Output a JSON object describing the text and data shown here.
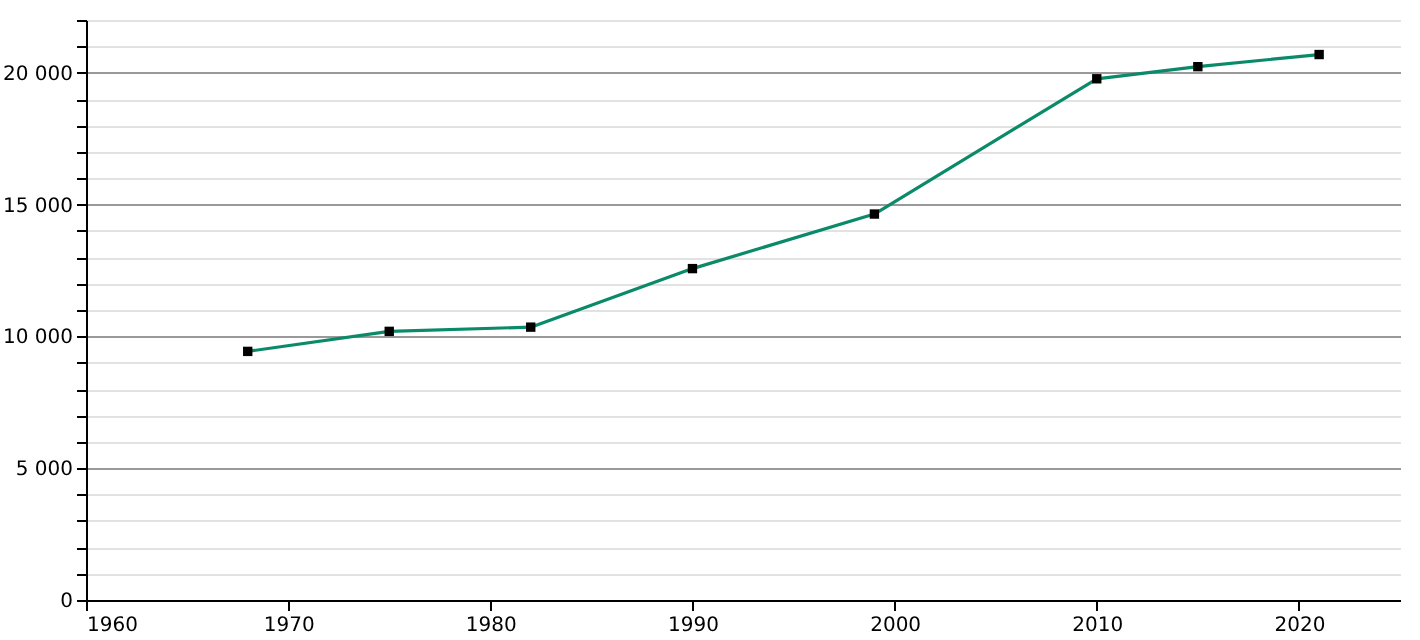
{
  "chart_data": {
    "type": "line",
    "x": [
      1968,
      1975,
      1982,
      1990,
      1999,
      2010,
      2015,
      2021
    ],
    "series": [
      {
        "color": "#0a8a68",
        "values": [
          9430,
          10190,
          10350,
          12570,
          14640,
          19770,
          20230,
          20690
        ]
      }
    ],
    "xlim": [
      1960,
      2025
    ],
    "xticks": [
      1960,
      1970,
      1980,
      1990,
      2000,
      2010,
      2020
    ],
    "ylim": [
      0,
      22000
    ],
    "yticks": [
      0,
      {
        "value": 1000,
        "label": null
      },
      {
        "value": 2000,
        "label": null
      },
      {
        "value": 3000,
        "label": null
      },
      {
        "value": 4000,
        "label": null
      },
      {
        "value": 5000,
        "label": "5 000"
      },
      {
        "value": 6000,
        "label": null
      },
      {
        "value": 7000,
        "label": null
      },
      {
        "value": 8000,
        "label": null
      },
      {
        "value": 9000,
        "label": null
      },
      {
        "value": 10000,
        "label": "10 000"
      },
      {
        "value": 11000,
        "label": null
      },
      {
        "value": 12000,
        "label": null
      },
      {
        "value": 13000,
        "label": null
      },
      {
        "value": 14000,
        "label": null
      },
      {
        "value": 15000,
        "label": "15 000"
      },
      {
        "value": 16000,
        "label": null
      },
      {
        "value": 17000,
        "label": null
      },
      {
        "value": 18000,
        "label": null
      },
      {
        "value": 19000,
        "label": null
      },
      {
        "value": 20000,
        "label": "20 000"
      },
      {
        "value": 21000,
        "label": null
      },
      {
        "value": 22000,
        "label": null
      }
    ],
    "grid": "y",
    "marker": "square",
    "line_style": "solid"
  }
}
